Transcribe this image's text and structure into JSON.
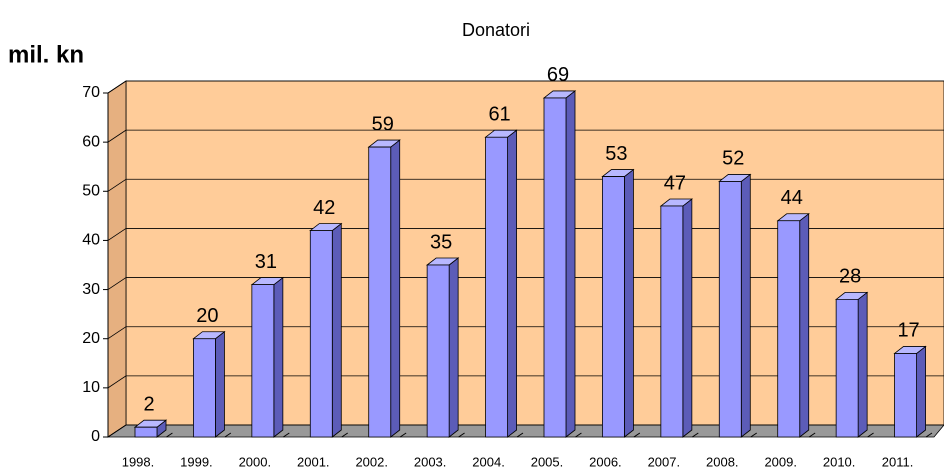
{
  "chart_data": {
    "type": "bar3d",
    "title": "Donatori",
    "y_label": "mil. kn",
    "categories": [
      "1998.",
      "1999.",
      "2000.",
      "2001.",
      "2002.",
      "2003.",
      "2004.",
      "2005.",
      "2006.",
      "2007.",
      "2008.",
      "2009.",
      "2010.",
      "2011."
    ],
    "values": [
      2,
      20,
      31,
      42,
      59,
      35,
      61,
      69,
      53,
      47,
      52,
      44,
      28,
      17
    ],
    "color": "#9999ff",
    "ylim": [
      0,
      70
    ],
    "yticks": [
      0,
      10,
      20,
      30,
      40,
      50,
      60,
      70
    ],
    "grid": true
  }
}
